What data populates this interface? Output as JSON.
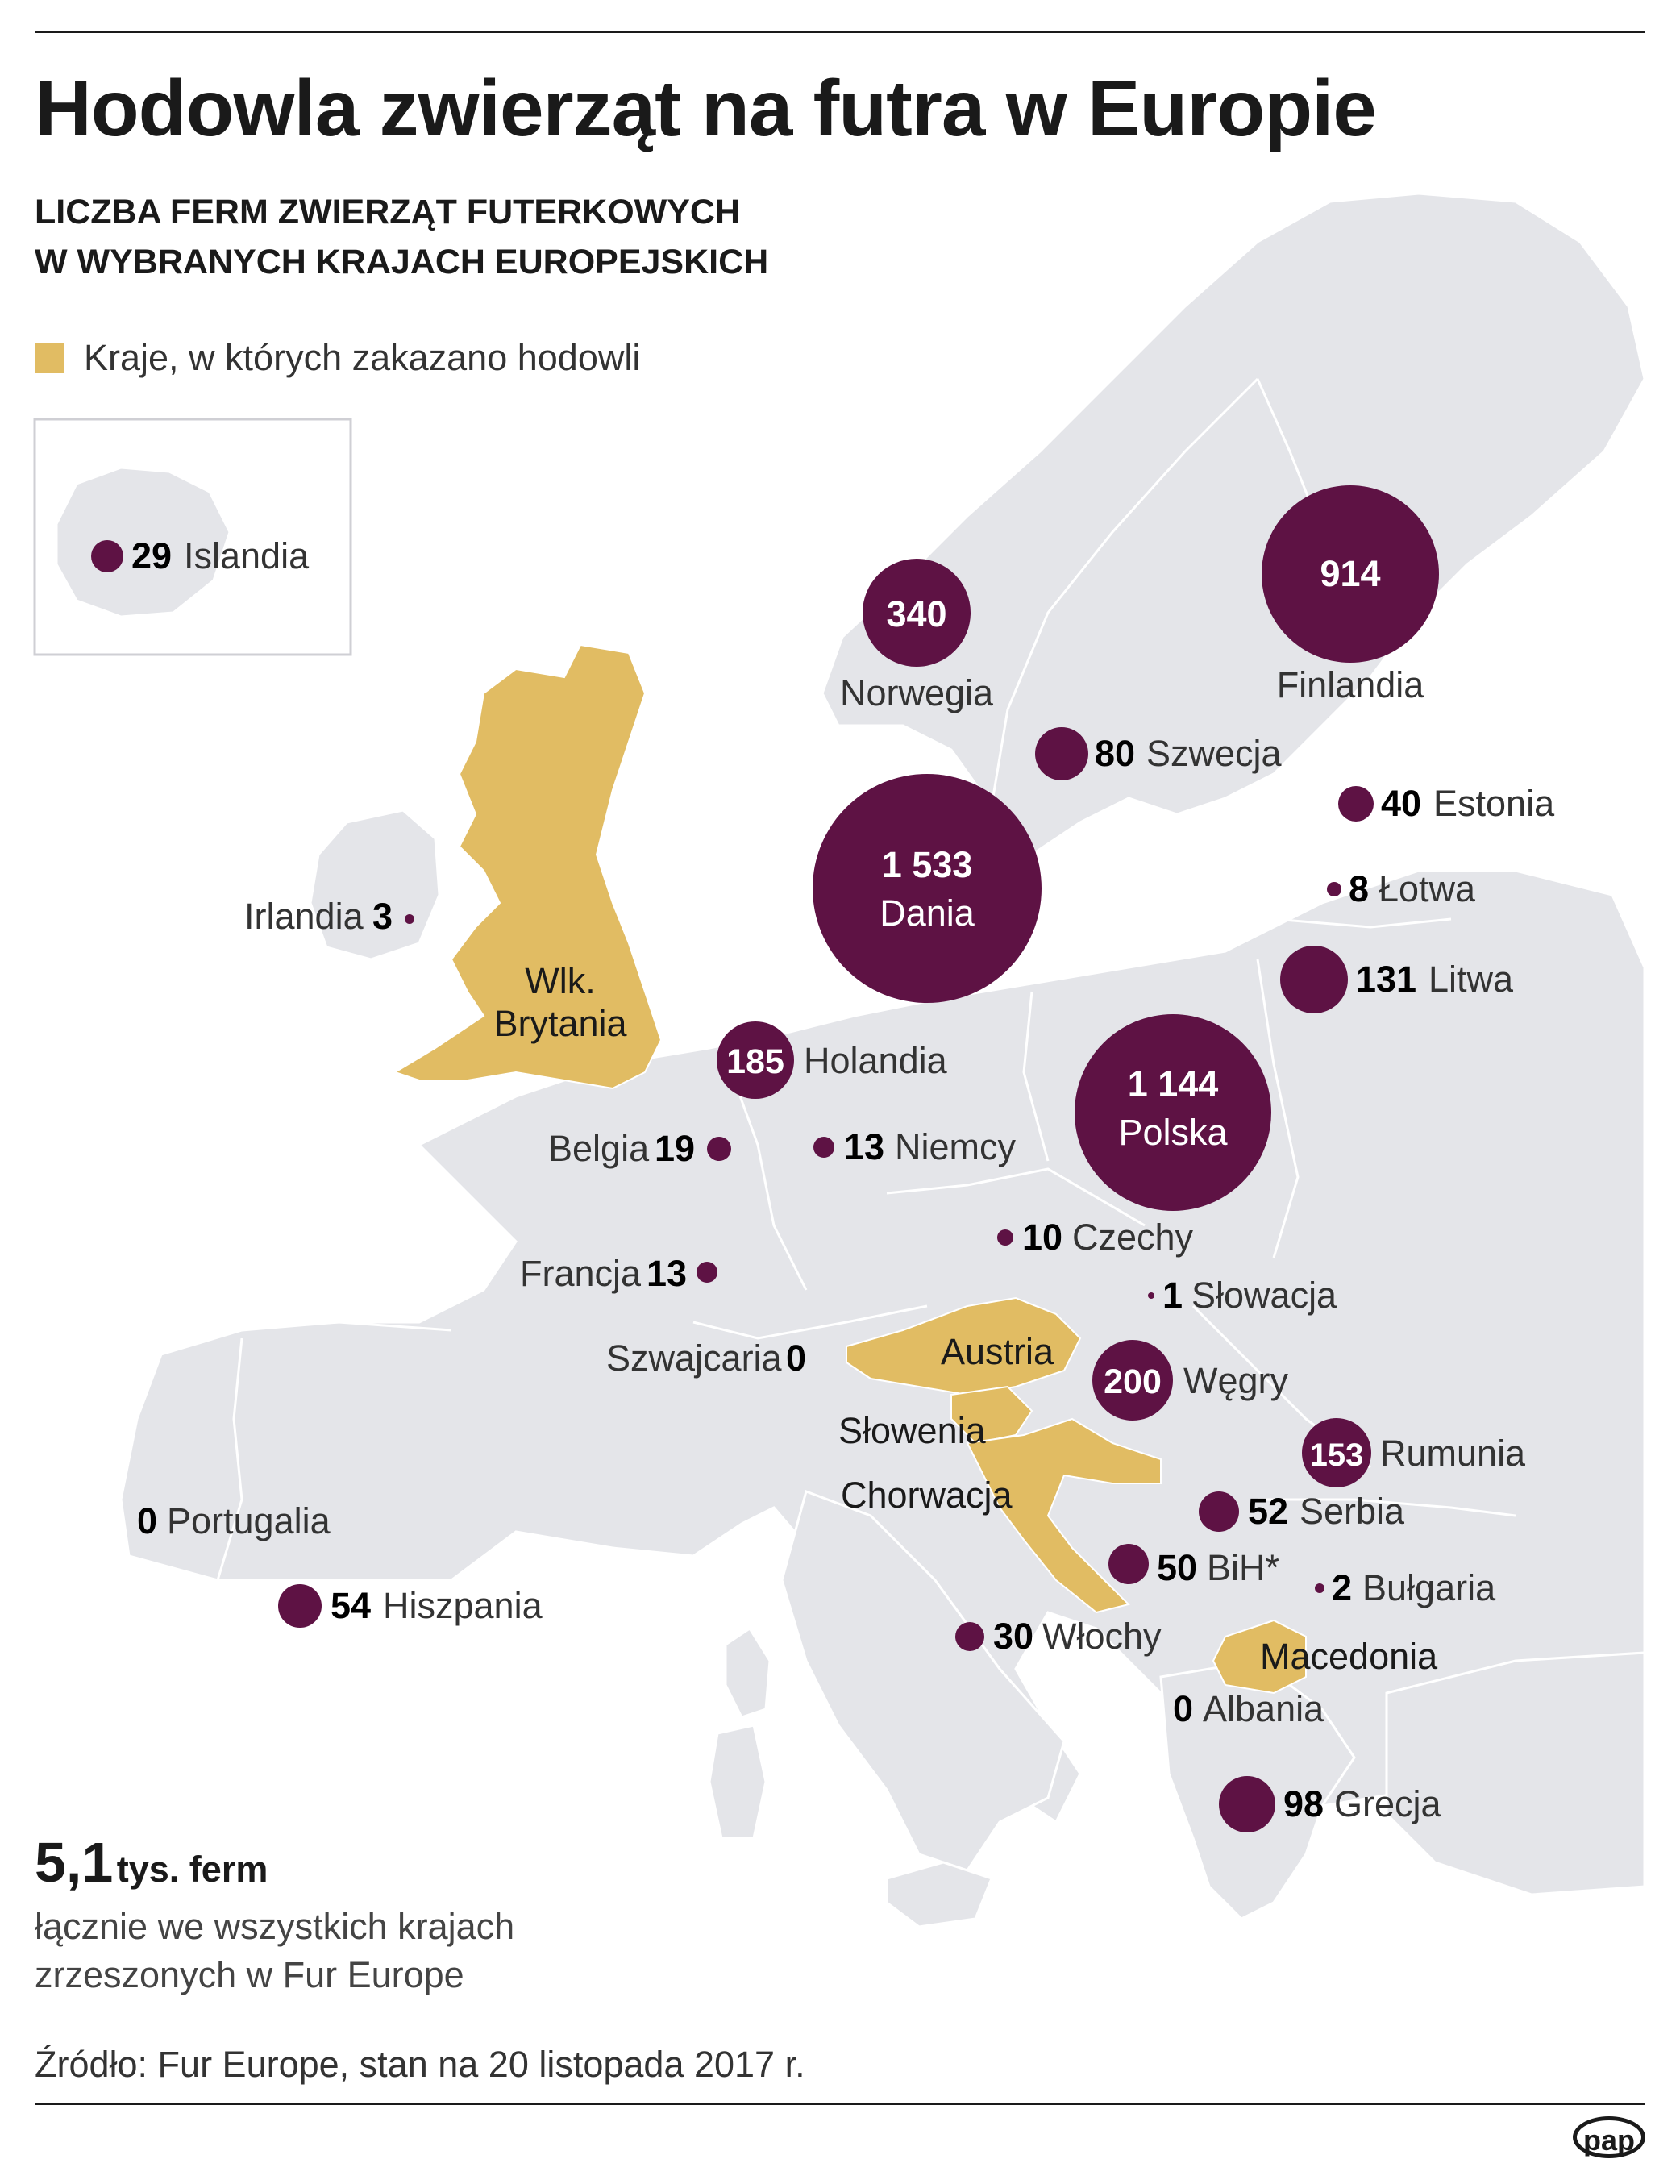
{
  "title": "Hodowla zwierząt na futra w Europie",
  "subtitle": [
    "LICZBA FERM ZWIERZĄT FUTERKOWYCH",
    "W WYBRANYCH KRAJACH EUROPEJSKICH"
  ],
  "legend": {
    "label": "Kraje, w których zakazano hodowli",
    "color": "#e1bc63"
  },
  "colors": {
    "bubble": "#5e1244",
    "land": "#e4e5e9",
    "banned": "#e1bc63",
    "background": "#ffffff"
  },
  "countries": [
    {
      "id": "islandia",
      "value": "29",
      "name": "Islandia"
    },
    {
      "id": "norwegia",
      "value": "340",
      "name": "Norwegia"
    },
    {
      "id": "finlandia",
      "value": "914",
      "name": "Finlandia"
    },
    {
      "id": "szwecja",
      "value": "80",
      "name": "Szwecja"
    },
    {
      "id": "estonia",
      "value": "40",
      "name": "Estonia"
    },
    {
      "id": "dania",
      "value": "1 533",
      "name": "Dania"
    },
    {
      "id": "lotwa",
      "value": "8",
      "name": "Łotwa"
    },
    {
      "id": "irlandia",
      "value": "3",
      "name": "Irlandia"
    },
    {
      "id": "litwa",
      "value": "131",
      "name": "Litwa"
    },
    {
      "id": "holandia",
      "value": "185",
      "name": "Holandia"
    },
    {
      "id": "polska",
      "value": "1 144",
      "name": "Polska"
    },
    {
      "id": "belgia",
      "value": "19",
      "name": "Belgia"
    },
    {
      "id": "niemcy",
      "value": "13",
      "name": "Niemcy"
    },
    {
      "id": "czechy",
      "value": "10",
      "name": "Czechy"
    },
    {
      "id": "francja",
      "value": "13",
      "name": "Francja"
    },
    {
      "id": "slowacja",
      "value": "1",
      "name": "Słowacja"
    },
    {
      "id": "szwajcaria",
      "value": "0",
      "name": "Szwajcaria"
    },
    {
      "id": "wegry",
      "value": "200",
      "name": "Węgry"
    },
    {
      "id": "rumunia",
      "value": "153",
      "name": "Rumunia"
    },
    {
      "id": "portugalia",
      "value": "0",
      "name": "Portugalia"
    },
    {
      "id": "serbia",
      "value": "52",
      "name": "Serbia"
    },
    {
      "id": "bih",
      "value": "50",
      "name": "BiH*"
    },
    {
      "id": "bulgaria",
      "value": "2",
      "name": "Bułgaria"
    },
    {
      "id": "hiszpania",
      "value": "54",
      "name": "Hiszpania"
    },
    {
      "id": "wlochy",
      "value": "30",
      "name": "Włochy"
    },
    {
      "id": "albania",
      "value": "0",
      "name": "Albania"
    },
    {
      "id": "grecja",
      "value": "98",
      "name": "Grecja"
    }
  ],
  "banned_countries": [
    {
      "id": "wlk-brytania",
      "name": [
        "Wlk.",
        "Brytania"
      ]
    },
    {
      "id": "austria",
      "name": "Austria"
    },
    {
      "id": "slowenia",
      "name": "Słowenia"
    },
    {
      "id": "chorwacja",
      "name": "Chorwacja"
    },
    {
      "id": "macedonia",
      "name": "Macedonia"
    }
  ],
  "total": {
    "value": "5,1",
    "unit": "tys. ferm",
    "desc": [
      "łącznie we wszystkich krajach",
      "zrzeszonych w Fur Europe"
    ]
  },
  "source": "Źródło: Fur Europe, stan na 20 listopada 2017 r.",
  "logo": "pap"
}
